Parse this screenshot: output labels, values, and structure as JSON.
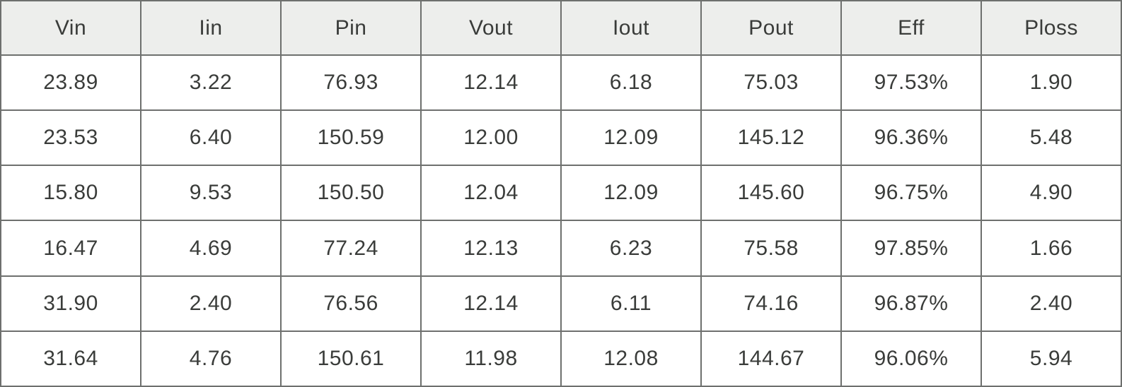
{
  "table": {
    "columns": [
      "Vin",
      "Iin",
      "Pin",
      "Vout",
      "Iout",
      "Pout",
      "Eff",
      "Ploss"
    ],
    "rows": [
      [
        "23.89",
        "3.22",
        "76.93",
        "12.14",
        "6.18",
        "75.03",
        "97.53%",
        "1.90"
      ],
      [
        "23.53",
        "6.40",
        "150.59",
        "12.00",
        "12.09",
        "145.12",
        "96.36%",
        "5.48"
      ],
      [
        "15.80",
        "9.53",
        "150.50",
        "12.04",
        "12.09",
        "145.60",
        "96.75%",
        "4.90"
      ],
      [
        "16.47",
        "4.69",
        "77.24",
        "12.13",
        "6.23",
        "75.58",
        "97.85%",
        "1.66"
      ],
      [
        "31.90",
        "2.40",
        "76.56",
        "12.14",
        "6.11",
        "74.16",
        "96.87%",
        "2.40"
      ],
      [
        "31.64",
        "4.76",
        "150.61",
        "11.98",
        "12.08",
        "144.67",
        "96.06%",
        "5.94"
      ]
    ]
  },
  "colors": {
    "border": "#6e706e",
    "header_bg": "#edeeec",
    "body_bg": "#ffffff",
    "text": "#3a3c3a"
  },
  "chart_data": {
    "type": "table",
    "columns": [
      "Vin",
      "Iin",
      "Pin",
      "Vout",
      "Iout",
      "Pout",
      "Eff",
      "Ploss"
    ],
    "rows": [
      [
        23.89,
        3.22,
        76.93,
        12.14,
        6.18,
        75.03,
        "97.53%",
        1.9
      ],
      [
        23.53,
        6.4,
        150.59,
        12.0,
        12.09,
        145.12,
        "96.36%",
        5.48
      ],
      [
        15.8,
        9.53,
        150.5,
        12.04,
        12.09,
        145.6,
        "96.75%",
        4.9
      ],
      [
        16.47,
        4.69,
        77.24,
        12.13,
        6.23,
        75.58,
        "97.85%",
        1.66
      ],
      [
        31.9,
        2.4,
        76.56,
        12.14,
        6.11,
        74.16,
        "96.87%",
        2.4
      ],
      [
        31.64,
        4.76,
        150.61,
        11.98,
        12.08,
        144.67,
        "96.06%",
        5.94
      ]
    ]
  }
}
